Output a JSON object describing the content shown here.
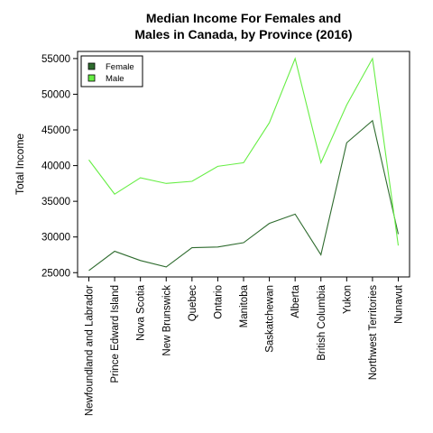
{
  "chart_data": {
    "type": "line",
    "title": "Median Income For Females and Males in Canada, by Province (2016)",
    "title_lines": [
      "Median Income For Females and",
      "Males in Canada, by Province (2016)"
    ],
    "ylabel": "Total Income",
    "xlabel": "",
    "ylim": [
      24400,
      56000
    ],
    "yticks": [
      25000,
      30000,
      35000,
      40000,
      45000,
      50000,
      55000
    ],
    "grid": false,
    "legend_position": "top-left",
    "categories": [
      "Newfoundland and Labrador",
      "Prince Edward Island",
      "Nova Scotia",
      "New Brunswick",
      "Quebec",
      "Ontario",
      "Manitoba",
      "Saskatchewan",
      "Alberta",
      "British Columbia",
      "Yukon",
      "Northwest Territories",
      "Nunavut"
    ],
    "series": [
      {
        "name": "Female",
        "color": "#2e6b2e",
        "values": [
          25300,
          28000,
          26700,
          25800,
          28500,
          28600,
          29200,
          31900,
          33200,
          27500,
          43200,
          46300,
          30400
        ]
      },
      {
        "name": "Male",
        "color": "#66ee44",
        "values": [
          40800,
          36000,
          38300,
          37500,
          37800,
          39900,
          40400,
          46000,
          55000,
          40400,
          48500,
          55000,
          28800
        ]
      }
    ]
  }
}
